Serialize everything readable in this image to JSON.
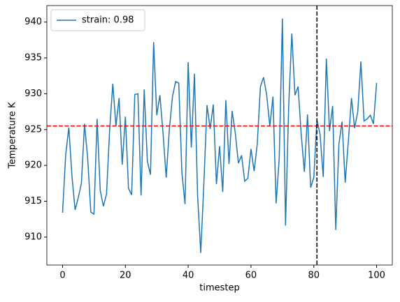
{
  "chart_data": {
    "type": "line",
    "xlabel": "timestep",
    "ylabel": "Temperature K",
    "x": [
      0,
      1,
      2,
      3,
      4,
      5,
      6,
      7,
      8,
      9,
      10,
      11,
      12,
      13,
      14,
      15,
      16,
      17,
      18,
      19,
      20,
      21,
      22,
      23,
      24,
      25,
      26,
      27,
      28,
      29,
      30,
      31,
      32,
      33,
      34,
      35,
      36,
      37,
      38,
      39,
      40,
      41,
      42,
      43,
      44,
      45,
      46,
      47,
      48,
      49,
      50,
      51,
      52,
      53,
      54,
      55,
      56,
      57,
      58,
      59,
      60,
      61,
      62,
      63,
      64,
      65,
      66,
      67,
      68,
      69,
      70,
      71,
      72,
      73,
      74,
      75,
      76,
      77,
      78,
      79,
      80,
      81,
      82,
      83,
      84,
      85,
      86,
      87,
      88,
      89,
      90,
      91,
      92,
      93,
      94,
      95,
      96,
      97,
      98,
      99,
      100
    ],
    "series": [
      {
        "name": "strain: 0.98",
        "color": "#1f77b4",
        "values": [
          913.4,
          921.5,
          925.3,
          918.5,
          913.8,
          915.5,
          917.5,
          925.8,
          921,
          913.5,
          913.2,
          926.5,
          916.5,
          914.3,
          916,
          925,
          931.4,
          925.5,
          929.4,
          920.1,
          926.8,
          916.8,
          915.9,
          929.9,
          930,
          915.8,
          930.6,
          920.6,
          918.7,
          937.2,
          927,
          929.8,
          924.5,
          918.3,
          925,
          929.6,
          931.7,
          931.5,
          919,
          914.6,
          934.4,
          922.5,
          932.8,
          915.8,
          907.8,
          917.5,
          928.4,
          925.1,
          928.5,
          917.4,
          922.7,
          916.3,
          929.1,
          920.2,
          927.6,
          924.5,
          920.3,
          921.4,
          917.8,
          918.2,
          922.3,
          919.2,
          923,
          931,
          932.3,
          929.8,
          925.5,
          929.6,
          914.7,
          921,
          940.5,
          911.6,
          928.2,
          938.4,
          929.8,
          931,
          924.3,
          919.1,
          927.1,
          916.9,
          918.3,
          926.4,
          924.3,
          918.4,
          934.9,
          924.8,
          928.3,
          911,
          923,
          926.1,
          917.6,
          923.4,
          929.4,
          925.2,
          927.5,
          934.5,
          926.2,
          926.5,
          927,
          925.8,
          931.5
        ]
      }
    ],
    "xlim": [
      -5,
      105
    ],
    "xticks": [
      0,
      20,
      40,
      60,
      80,
      100
    ],
    "ylim": [
      906.1,
      942.3
    ],
    "yticks": [
      910,
      915,
      920,
      925,
      930,
      935,
      940
    ],
    "hline": {
      "y": 925.5,
      "color": "#ff0000"
    },
    "vline": {
      "x": 81,
      "color": "#000000"
    },
    "legend": "upper left"
  }
}
